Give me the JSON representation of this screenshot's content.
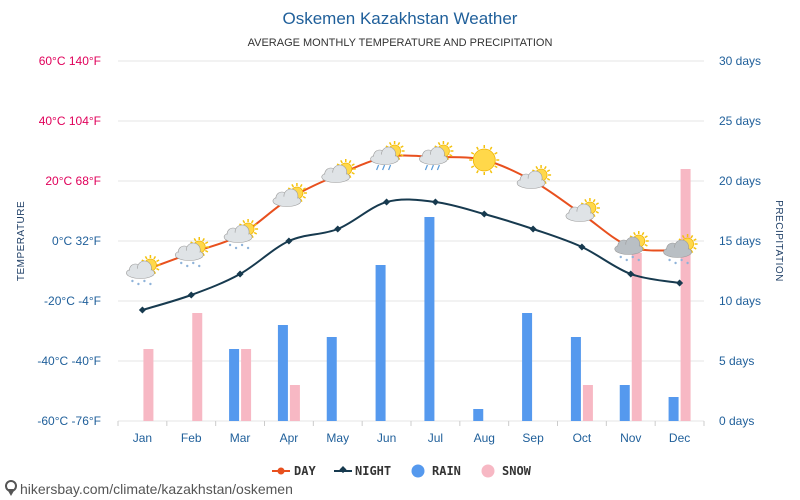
{
  "header": {
    "title": "Oskemen Kazakhstan Weather",
    "subtitle": "AVERAGE MONTHLY TEMPERATURE AND PRECIPITATION"
  },
  "axes": {
    "left_title": "TEMPERATURE",
    "right_title": "PRECIPITATION",
    "left_ticks": [
      "60°C 140°F",
      "40°C 104°F",
      "20°C 68°F",
      "0°C 32°F",
      "-20°C -4°F",
      "-40°C -40°F",
      "-60°C -76°F"
    ],
    "right_ticks": [
      "30 days",
      "25 days",
      "20 days",
      "15 days",
      "10 days",
      "5 days",
      "0 days"
    ]
  },
  "legend": {
    "day": "DAY",
    "night": "NIGHT",
    "rain": "RAIN",
    "snow": "SNOW"
  },
  "footer": {
    "url": "hikersbay.com/climate/kazakhstan/oskemen"
  },
  "colors": {
    "day": "#e8501e",
    "night": "#173a4f",
    "rain": "#5599ee",
    "snow": "#f7b8c4",
    "grid": "#e6e6e6",
    "left_ticks": [
      "#e0005a",
      "#e0005a",
      "#e0005a",
      "#1f5f9a",
      "#1f5f9a",
      "#1f5f9a",
      "#1f5f9a"
    ]
  },
  "chart_data": {
    "type": "line+bar",
    "title": "Oskemen Kazakhstan Weather",
    "subtitle": "AVERAGE MONTHLY TEMPERATURE AND PRECIPITATION",
    "categories": [
      "Jan",
      "Feb",
      "Mar",
      "Apr",
      "May",
      "Jun",
      "Jul",
      "Aug",
      "Sep",
      "Oct",
      "Nov",
      "Dec"
    ],
    "temperature_axis": {
      "label": "TEMPERATURE",
      "unit": "°C",
      "range": [
        -60,
        60
      ]
    },
    "precipitation_axis": {
      "label": "PRECIPITATION",
      "unit": "days",
      "range": [
        0,
        30
      ]
    },
    "series": [
      {
        "name": "DAY",
        "kind": "line",
        "axis": "temperature",
        "values": [
          -10,
          -4,
          2,
          14,
          22,
          28,
          28,
          27,
          20,
          9,
          -2,
          -3
        ]
      },
      {
        "name": "NIGHT",
        "kind": "line",
        "axis": "temperature",
        "values": [
          -23,
          -18,
          -11,
          0,
          4,
          13,
          13,
          9,
          4,
          -2,
          -11,
          -14
        ]
      },
      {
        "name": "RAIN",
        "kind": "bar",
        "axis": "precipitation",
        "values": [
          0,
          0,
          6,
          8,
          7,
          13,
          17,
          1,
          9,
          7,
          3,
          2
        ]
      },
      {
        "name": "SNOW",
        "kind": "bar",
        "axis": "precipitation",
        "values": [
          6,
          9,
          6,
          3,
          0,
          0,
          0,
          0,
          0,
          3,
          14,
          21
        ]
      }
    ],
    "weather_icons": [
      "snow-cloud-sun-icon",
      "snow-cloud-sun-icon",
      "snow-cloud-sun-icon",
      "cloud-sun-icon",
      "cloud-sun-icon",
      "rain-cloud-sun-icon",
      "rain-cloud-sun-icon",
      "sun-icon",
      "cloud-sun-icon",
      "cloud-sun-icon",
      "snow-cloud-sun-icon",
      "snow-cloud-sun-icon"
    ],
    "grid": true,
    "legend_position": "bottom-center"
  }
}
